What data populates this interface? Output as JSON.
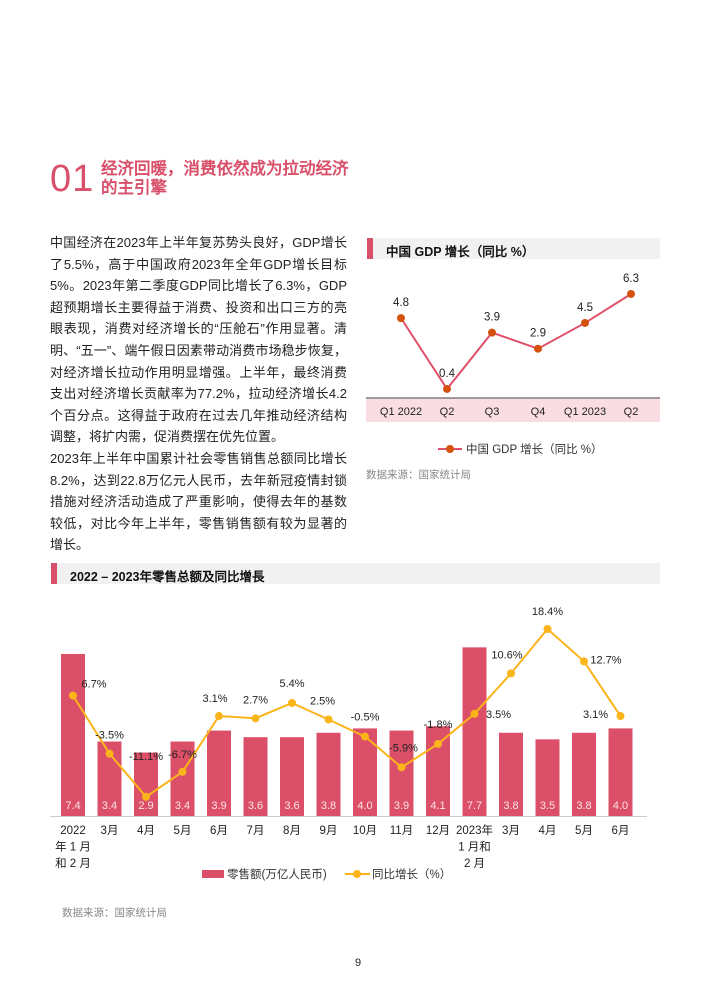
{
  "section": {
    "number": "01",
    "title": "经济回暖，消费依然成为拉动经济的主引擎"
  },
  "paragraphs": [
    "中国经济在2023年上半年复苏势头良好，GDP增长了5.5%，高于中国政府2023年全年GDP增长目标5%。2023年第二季度GDP同比增长了6.3%，GDP超预期增长主要得益于消费、投资和出口三方的亮眼表现，消费对经济增长的“压舱石”作用显著。清明、“五一”、端午假日因素带动消费市场稳步恢复，对经济增长拉动作用明显增强。上半年，最终消费支出对经济增长贡献率为77.2%，拉动经济增长4.2个百分点。这得益于政府在过去几年推动经济结构调整，将扩内需，促消费摆在优先位置。",
    "2023年上半年中国累计社会零售销售总额同比增长8.2%，达到22.8万亿元人民币，去年新冠疫情封锁措施对经济活动造成了严重影响，使得去年的基数较低，对比今年上半年，零售销售额有较为显著的增长。"
  ],
  "page_number": "9",
  "colors": {
    "accent": "#d9506a",
    "bar": "#db5068",
    "yoy_line": "#fbb41a",
    "gdp_line": "#e0506a",
    "gdp_marker": "#d4510e",
    "axis_band": "#f9dde2"
  },
  "chart_data": [
    {
      "type": "line",
      "title": "中国 GDP 增长（同比 %）",
      "categories": [
        "Q1 2022",
        "Q2",
        "Q3",
        "Q4",
        "Q1 2023",
        "Q2"
      ],
      "series": [
        {
          "name": "中国 GDP 增长（同比 %）",
          "values": [
            4.8,
            0.4,
            3.9,
            2.9,
            4.5,
            6.3
          ],
          "labels": [
            "4.8",
            "0.4",
            "3.9",
            "2.9",
            "4.5",
            "6.3"
          ]
        }
      ],
      "legend": "bottom",
      "source": "数据来源：国家统计局"
    },
    {
      "type": "bar+line",
      "title": "2022 – 2023年零售总额及同比增長",
      "categories": [
        "2022\n年 1 月\n和 2 月",
        "3月",
        "4月",
        "5月",
        "6月",
        "7月",
        "8月",
        "9月",
        "10月",
        "11月",
        "12月",
        "2023年\n1 月和\n2 月",
        "3月",
        "4月",
        "5月",
        "6月"
      ],
      "series": [
        {
          "name": "零售额(万亿人民币)",
          "kind": "bar",
          "values": [
            7.4,
            3.4,
            2.9,
            3.4,
            3.9,
            3.6,
            3.6,
            3.8,
            4.0,
            3.9,
            4.1,
            7.7,
            3.8,
            3.5,
            3.8,
            4.0
          ],
          "labels": [
            "7.4",
            "3.4",
            "2.9",
            "3.4",
            "3.9",
            "3.6",
            "3.6",
            "3.8",
            "4.0",
            "3.9",
            "4.1",
            "7.7",
            "3.8",
            "3.5",
            "3.8",
            "4.0"
          ]
        },
        {
          "name": "同比增长（%）",
          "kind": "line",
          "values": [
            6.7,
            -3.5,
            -11.1,
            -6.7,
            3.1,
            2.7,
            5.4,
            2.5,
            -0.5,
            -5.9,
            -1.8,
            3.5,
            10.6,
            18.4,
            12.7,
            3.1
          ],
          "labels": [
            "6.7%",
            "-3.5%",
            "-11.1%",
            "-6.7%",
            "3.1%",
            "2.7%",
            "5.4%",
            "2.5%",
            "-0.5%",
            "-5.9%",
            "-1.8%",
            "3.5%",
            "10.6%",
            "18.4%",
            "12.7%",
            "3.1%"
          ]
        }
      ],
      "legend": "bottom",
      "source": "数据来源：国家统计局"
    }
  ]
}
